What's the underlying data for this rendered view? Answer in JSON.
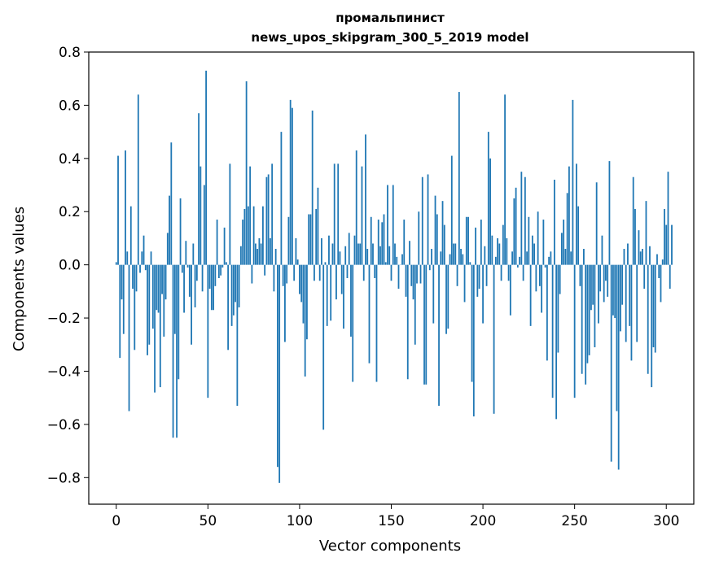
{
  "chart_data": {
    "type": "bar",
    "title_line1": "промальпинист",
    "title_line2": "news_upos_skipgram_300_5_2019 model",
    "xlabel": "Vector components",
    "ylabel": "Components values",
    "xlim": [
      -15,
      315
    ],
    "ylim": [
      -0.9,
      0.8
    ],
    "xticks": [
      0,
      50,
      100,
      150,
      200,
      250,
      300
    ],
    "xtick_labels": [
      "0",
      "50",
      "100",
      "150",
      "200",
      "250",
      "300"
    ],
    "yticks": [
      -0.8,
      -0.6,
      -0.4,
      -0.2,
      0.0,
      0.2,
      0.4,
      0.6,
      0.8
    ],
    "ytick_labels": [
      "−0.8",
      "−0.6",
      "−0.4",
      "−0.2",
      "0.0",
      "0.2",
      "0.4",
      "0.6",
      "0.8"
    ],
    "bar_color": "#1f77b4",
    "values": [
      0.01,
      0.41,
      -0.35,
      -0.13,
      -0.26,
      0.43,
      0.05,
      -0.55,
      0.22,
      -0.09,
      -0.32,
      -0.1,
      0.64,
      -0.03,
      0.05,
      0.11,
      -0.02,
      -0.34,
      -0.3,
      0.05,
      -0.24,
      -0.48,
      -0.17,
      -0.18,
      -0.46,
      -0.11,
      -0.27,
      -0.13,
      0.12,
      0.26,
      0.46,
      -0.65,
      -0.26,
      -0.65,
      -0.43,
      0.25,
      -0.03,
      -0.18,
      0.09,
      -0.01,
      -0.12,
      -0.3,
      0.08,
      -0.16,
      -0.06,
      0.57,
      0.37,
      -0.1,
      0.3,
      0.73,
      -0.5,
      -0.09,
      -0.17,
      -0.17,
      -0.08,
      0.17,
      -0.05,
      -0.04,
      -0.01,
      0.14,
      0.01,
      -0.32,
      0.38,
      -0.23,
      -0.19,
      -0.14,
      -0.53,
      -0.16,
      0.07,
      0.17,
      0.21,
      0.69,
      0.22,
      0.37,
      -0.07,
      0.22,
      0.08,
      0.06,
      0.1,
      0.08,
      0.22,
      -0.04,
      0.33,
      0.34,
      0.1,
      0.38,
      -0.1,
      0.06,
      -0.76,
      -0.82,
      0.5,
      -0.08,
      -0.29,
      -0.07,
      0.18,
      0.62,
      0.59,
      -0.06,
      0.1,
      0.02,
      -0.11,
      -0.14,
      -0.22,
      -0.42,
      -0.28,
      0.19,
      0.19,
      0.58,
      -0.06,
      0.21,
      0.29,
      -0.06,
      0.1,
      -0.62,
      0.01,
      -0.23,
      0.11,
      -0.21,
      0.08,
      0.38,
      -0.13,
      0.38,
      0.05,
      -0.11,
      -0.24,
      0.07,
      -0.05,
      0.12,
      -0.27,
      -0.44,
      0.11,
      0.43,
      0.08,
      0.08,
      0.37,
      -0.06,
      0.49,
      0.06,
      -0.37,
      0.18,
      0.08,
      -0.05,
      -0.44,
      0.17,
      0.07,
      0.16,
      0.19,
      0.01,
      0.3,
      0.07,
      -0.06,
      0.3,
      0.08,
      0.03,
      -0.09,
      0.0,
      0.04,
      0.17,
      -0.12,
      -0.43,
      0.09,
      -0.08,
      -0.13,
      -0.3,
      -0.07,
      0.2,
      -0.07,
      0.33,
      -0.45,
      -0.45,
      0.34,
      -0.02,
      0.06,
      -0.22,
      0.26,
      0.19,
      -0.53,
      0.05,
      0.24,
      0.15,
      -0.26,
      -0.24,
      0.04,
      0.41,
      0.08,
      0.08,
      -0.08,
      0.65,
      0.06,
      0.04,
      -0.14,
      0.18,
      0.18,
      0.01,
      -0.44,
      -0.57,
      0.14,
      -0.12,
      -0.09,
      0.17,
      -0.22,
      0.07,
      -0.08,
      0.5,
      0.4,
      0.11,
      -0.56,
      0.03,
      0.1,
      0.08,
      -0.06,
      0.15,
      0.64,
      0.1,
      -0.06,
      -0.19,
      0.05,
      0.25,
      0.29,
      -0.01,
      0.03,
      0.35,
      -0.06,
      0.33,
      0.05,
      0.18,
      -0.23,
      0.11,
      0.08,
      -0.1,
      0.2,
      -0.08,
      -0.18,
      0.17,
      -0.01,
      -0.36,
      0.03,
      0.05,
      -0.5,
      0.32,
      -0.58,
      -0.33,
      -0.11,
      0.12,
      0.17,
      0.06,
      0.27,
      0.37,
      0.05,
      0.62,
      -0.5,
      0.38,
      0.22,
      -0.08,
      -0.41,
      0.06,
      -0.45,
      -0.37,
      -0.34,
      -0.17,
      -0.15,
      -0.31,
      0.31,
      -0.22,
      -0.1,
      0.11,
      -0.14,
      -0.06,
      -0.12,
      0.39,
      -0.74,
      -0.19,
      -0.2,
      -0.55,
      -0.77,
      -0.25,
      -0.15,
      0.06,
      -0.29,
      0.08,
      -0.23,
      -0.36,
      0.33,
      0.21,
      -0.29,
      0.13,
      0.05,
      0.06,
      -0.09,
      0.24,
      -0.41,
      0.07,
      -0.46,
      -0.31,
      -0.33,
      0.04,
      -0.05,
      -0.14,
      0.02,
      0.21,
      0.15,
      0.35,
      -0.09,
      0.15
    ]
  }
}
